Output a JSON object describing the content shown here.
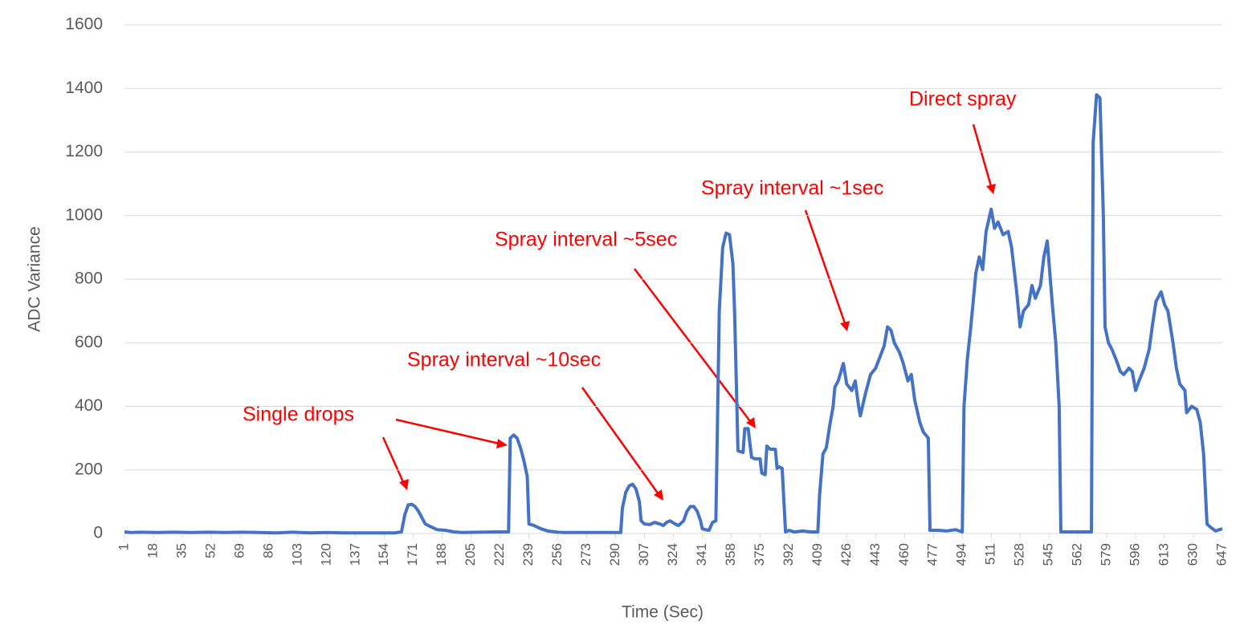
{
  "chart_data": {
    "type": "line",
    "x_label": "Time (Sec)",
    "y_label": "ADC Variance",
    "x": [
      1,
      5,
      10,
      20,
      30,
      40,
      50,
      60,
      70,
      80,
      90,
      100,
      110,
      120,
      130,
      140,
      150,
      160,
      164,
      166,
      168,
      170,
      172,
      174,
      176,
      178,
      181,
      185,
      190,
      195,
      200,
      210,
      220,
      227,
      228,
      230,
      232,
      234,
      236,
      238,
      239,
      242,
      246,
      250,
      256,
      260,
      270,
      280,
      293,
      294,
      296,
      298,
      300,
      302,
      304,
      305,
      307,
      310,
      313,
      316,
      318,
      320,
      322,
      325,
      327,
      330,
      332,
      334,
      336,
      338,
      340,
      341,
      343,
      345,
      347,
      349,
      351,
      353,
      355,
      357,
      359,
      360,
      362,
      365,
      366,
      368,
      370,
      372,
      375,
      376,
      378,
      379,
      381,
      384,
      385,
      386,
      388,
      390,
      392,
      395,
      400,
      405,
      409,
      410,
      412,
      414,
      416,
      418,
      419,
      421,
      424,
      426,
      429,
      431,
      433,
      434,
      437,
      440,
      443,
      448,
      450,
      452,
      454,
      457,
      459,
      462,
      464,
      466,
      469,
      471,
      474,
      475,
      477,
      480,
      485,
      490,
      494,
      495,
      497,
      499,
      502,
      504,
      506,
      508,
      511,
      513,
      515,
      518,
      521,
      523,
      526,
      528,
      530,
      533,
      535,
      537,
      540,
      542,
      544,
      547,
      549,
      551,
      552,
      560,
      570,
      571,
      573,
      575,
      577,
      578,
      580,
      582,
      585,
      587,
      589,
      592,
      594,
      596,
      598,
      601,
      604,
      606,
      608,
      611,
      613,
      615,
      618,
      620,
      622,
      625,
      626,
      629,
      632,
      634,
      636,
      638,
      640,
      643,
      647
    ],
    "series": [
      {
        "color": "#4472c4",
        "values": [
          5,
          3,
          4,
          3,
          4,
          3,
          4,
          3,
          4,
          3,
          2,
          4,
          2,
          3,
          2,
          2,
          2,
          2,
          5,
          60,
          90,
          92,
          85,
          70,
          50,
          30,
          22,
          12,
          10,
          5,
          3,
          4,
          5,
          5,
          300,
          310,
          300,
          270,
          230,
          180,
          30,
          25,
          15,
          8,
          4,
          3,
          3,
          3,
          3,
          80,
          130,
          150,
          155,
          140,
          100,
          40,
          30,
          28,
          35,
          30,
          25,
          35,
          40,
          30,
          25,
          40,
          70,
          85,
          85,
          70,
          40,
          15,
          12,
          10,
          35,
          40,
          700,
          900,
          945,
          940,
          850,
          700,
          260,
          255,
          330,
          330,
          240,
          235,
          235,
          190,
          185,
          275,
          265,
          265,
          205,
          210,
          205,
          5,
          10,
          5,
          8,
          5,
          5,
          120,
          250,
          270,
          340,
          400,
          460,
          480,
          535,
          470,
          450,
          480,
          400,
          370,
          440,
          500,
          520,
          590,
          650,
          640,
          600,
          570,
          540,
          480,
          500,
          420,
          350,
          320,
          300,
          10,
          10,
          10,
          8,
          12,
          5,
          400,
          550,
          650,
          820,
          870,
          830,
          950,
          1020,
          960,
          980,
          940,
          950,
          900,
          760,
          650,
          700,
          720,
          780,
          740,
          780,
          870,
          920,
          720,
          600,
          400,
          5,
          5,
          5,
          1230,
          1380,
          1370,
          1000,
          650,
          600,
          580,
          540,
          510,
          500,
          520,
          510,
          450,
          480,
          520,
          580,
          660,
          730,
          760,
          720,
          700,
          600,
          520,
          470,
          450,
          380,
          400,
          390,
          350,
          250,
          30,
          20,
          8,
          15
        ]
      }
    ],
    "xlim": [
      1,
      647
    ],
    "xticks": [
      1,
      18,
      35,
      52,
      69,
      86,
      103,
      120,
      137,
      154,
      171,
      188,
      205,
      222,
      239,
      256,
      273,
      290,
      307,
      324,
      341,
      358,
      375,
      392,
      409,
      426,
      443,
      460,
      477,
      494,
      511,
      528,
      545,
      562,
      579,
      596,
      613,
      630,
      647
    ],
    "ylim": [
      0,
      1600
    ],
    "yticks": [
      0,
      200,
      400,
      600,
      800,
      1000,
      1200,
      1400,
      1600
    ],
    "grid": true,
    "annotations": [
      "Single drops",
      "Spray interval ~10sec",
      "Spray interval ~5sec",
      "Spray interval ~1sec",
      "Direct spray"
    ]
  }
}
